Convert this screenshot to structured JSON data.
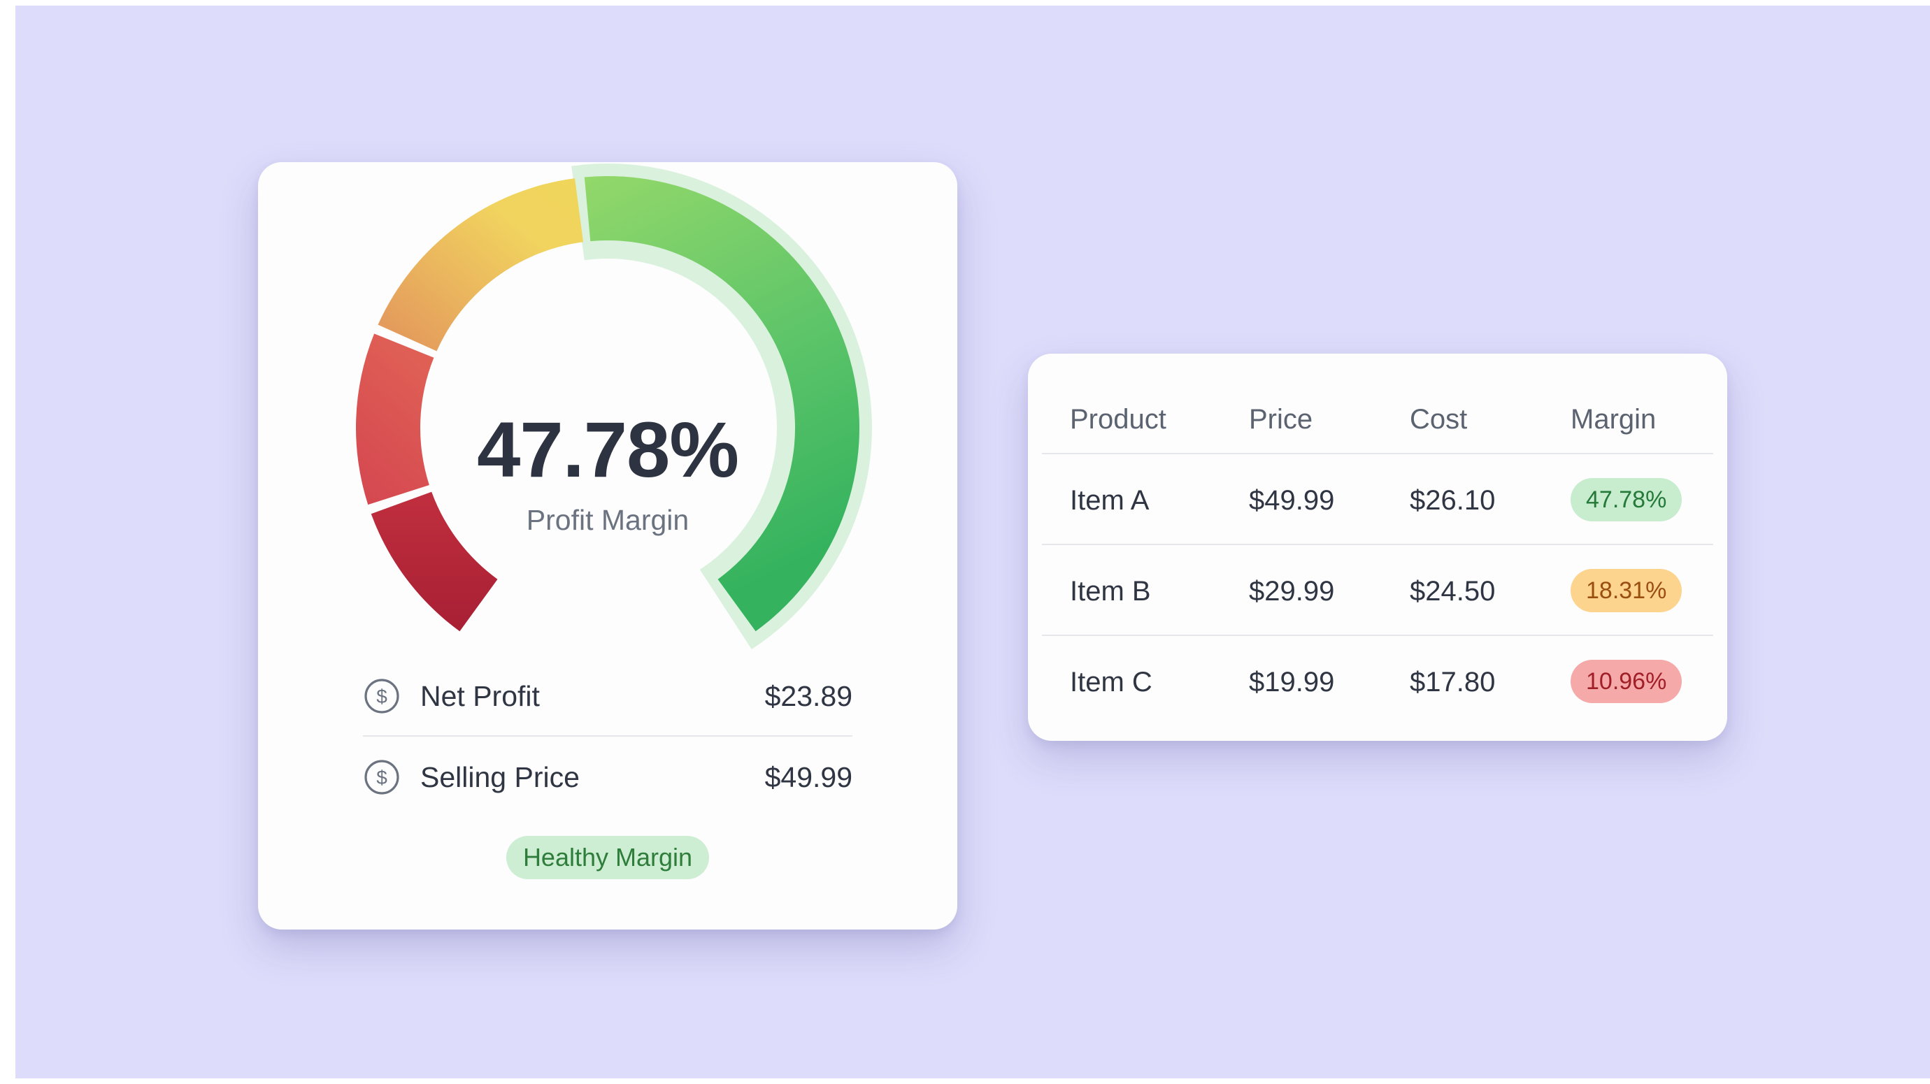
{
  "gauge_card": {
    "value": "47.78%",
    "caption": "Profit Margin",
    "level_percent": 47.78,
    "segment_colors": [
      "#b3263a",
      "#d95055",
      "#e7a25a",
      "#f3df5d",
      "#8fd66a",
      "#3fb662"
    ],
    "rows": [
      {
        "label": "Net Profit",
        "value": "$23.89",
        "icon": "dollar-circle-icon"
      },
      {
        "label": "Selling Price",
        "value": "$49.99",
        "icon": "dollar-circle-icon"
      }
    ],
    "status_badge": "Healthy Margin"
  },
  "table": {
    "headers": [
      "Product",
      "Price",
      "Cost",
      "Margin"
    ],
    "rows": [
      {
        "product": "Item A",
        "price": "$49.99",
        "cost": "$26.10",
        "margin": "47.78%",
        "status": "green"
      },
      {
        "product": "Item B",
        "price": "$29.99",
        "cost": "$24.50",
        "margin": "18.31%",
        "status": "orange"
      },
      {
        "product": "Item C",
        "price": "$19.99",
        "cost": "$17.80",
        "margin": "10.96%",
        "status": "red"
      }
    ]
  },
  "colors": {
    "background": "#dddcfb",
    "card": "#fdfdfd",
    "text_primary": "#2d3340",
    "text_muted": "#6b7280",
    "badge_green": "#cdeed3",
    "badge_orange": "#fcd48e",
    "badge_red": "#f5a9a9"
  }
}
